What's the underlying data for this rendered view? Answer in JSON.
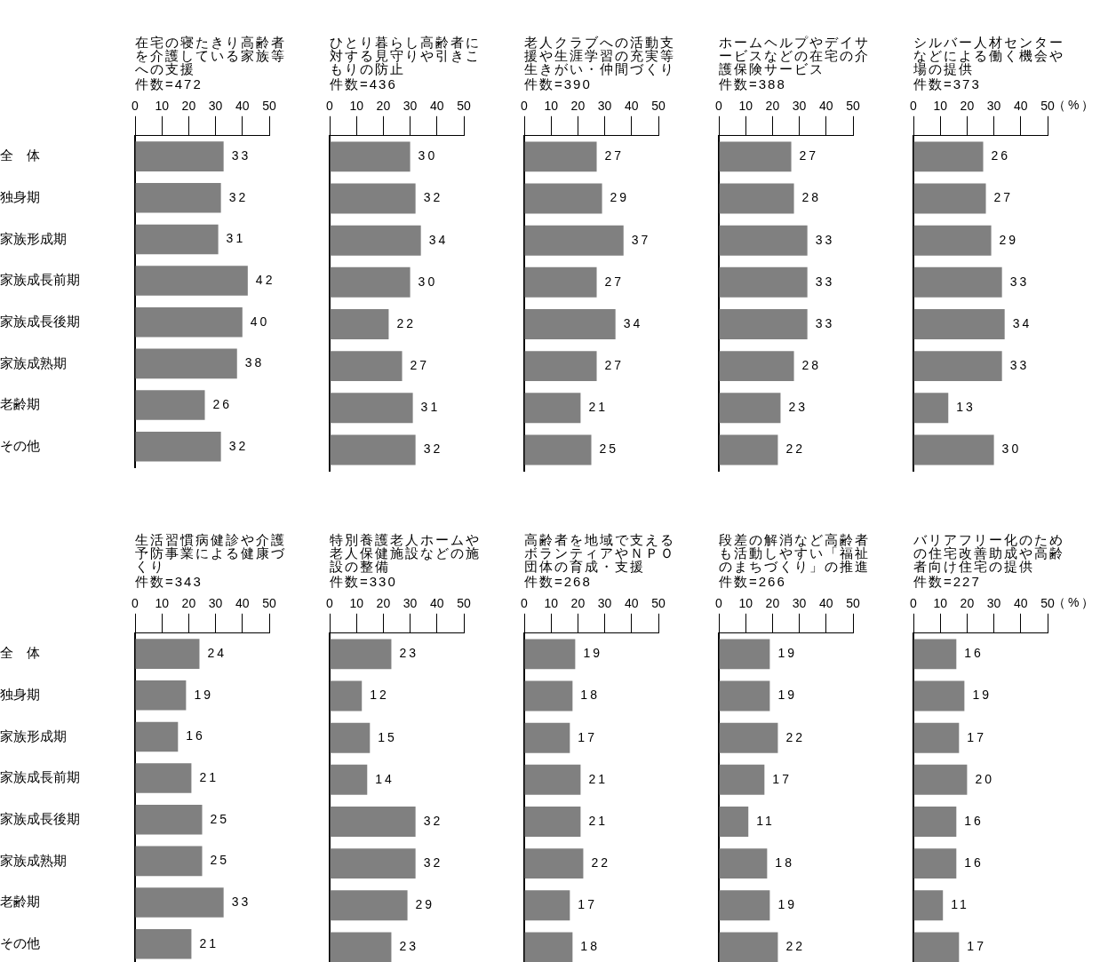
{
  "chart_data": [
    {
      "type": "bar",
      "orientation": "horizontal",
      "title": "在宅の寝たきり高齢者を介護している家族等への支援",
      "subtitle": "件数=472",
      "categories": [
        "全　体",
        "独身期",
        "家族形成期",
        "家族成長前期",
        "家族成長後期",
        "家族成熟期",
        "老齢期",
        "その他"
      ],
      "values": [
        33,
        32,
        31,
        42,
        40,
        38,
        26,
        32
      ],
      "color": "#808080",
      "xlim": [
        0,
        50
      ],
      "xticks": [
        0,
        10,
        20,
        30,
        40,
        50
      ],
      "data_labels": true
    },
    {
      "type": "bar",
      "orientation": "horizontal",
      "title": "ひとり暮らし高齢者に対する見守りや引きこもりの防止",
      "subtitle": "件数=436",
      "categories": [
        null,
        null,
        null,
        null,
        null,
        null,
        null,
        null
      ],
      "values": [
        30,
        32,
        34,
        30,
        22,
        27,
        31,
        32
      ],
      "color": "#808080",
      "xlim": [
        0,
        50
      ],
      "xticks": [
        0,
        10,
        20,
        30,
        40,
        50
      ],
      "data_labels": true,
      "tick_labels": "x"
    },
    {
      "type": "bar",
      "orientation": "horizontal",
      "title": "老人クラブへの活動支援や生涯学習の充実等生きがい・仲間づくり",
      "subtitle": "件数=390",
      "categories": [
        null,
        null,
        null,
        null,
        null,
        null,
        null,
        null
      ],
      "values": [
        27,
        29,
        37,
        27,
        34,
        27,
        21,
        25
      ],
      "color": "#808080",
      "xlim": [
        0,
        50
      ],
      "xticks": [
        0,
        10,
        20,
        30,
        40,
        50
      ],
      "data_labels": true,
      "tick_labels": "x"
    },
    {
      "type": "bar",
      "orientation": "horizontal",
      "title": "ホームヘルプやデイサービスなどの在宅の介護保険サービス",
      "subtitle": "件数=388",
      "categories": [
        null,
        null,
        null,
        null,
        null,
        null,
        null,
        null
      ],
      "values": [
        27,
        28,
        33,
        33,
        33,
        28,
        23,
        22
      ],
      "color": "#808080",
      "xlim": [
        0,
        50
      ],
      "xticks": [
        0,
        10,
        20,
        30,
        40,
        50
      ],
      "data_labels": true,
      "tick_labels": "x"
    },
    {
      "type": "bar",
      "orientation": "horizontal",
      "title": "シルバー人材センターなどによる働く機会や場の提供",
      "subtitle": "件数=373",
      "xlabel": "（%）",
      "categories": [
        null,
        null,
        null,
        null,
        null,
        null,
        null,
        null
      ],
      "values": [
        26,
        27,
        29,
        33,
        34,
        33,
        13,
        30
      ],
      "color": "#808080",
      "xlim": [
        0,
        50
      ],
      "xticks": [
        0,
        10,
        20,
        30,
        40,
        50
      ],
      "data_labels": true,
      "tick_labels": "x"
    },
    {
      "type": "bar",
      "orientation": "horizontal",
      "title": "生活習慣病健診や介護予防事業による健康づくり",
      "subtitle": "件数=343",
      "categories": [
        "全　体",
        "独身期",
        "家族形成期",
        "家族成長前期",
        "家族成長後期",
        "家族成熟期",
        "老齢期",
        "その他"
      ],
      "values": [
        24,
        19,
        16,
        21,
        25,
        25,
        33,
        21
      ],
      "color": "#808080",
      "xlim": [
        0,
        50
      ],
      "xticks": [
        0,
        10,
        20,
        30,
        40,
        50
      ],
      "data_labels": true
    },
    {
      "type": "bar",
      "orientation": "horizontal",
      "title": "特別養護老人ホームや老人保健施設などの施設の整備",
      "subtitle": "件数=330",
      "categories": [
        null,
        null,
        null,
        null,
        null,
        null,
        null,
        null
      ],
      "values": [
        23,
        12,
        15,
        14,
        32,
        32,
        29,
        23
      ],
      "color": "#808080",
      "xlim": [
        0,
        50
      ],
      "xticks": [
        0,
        10,
        20,
        30,
        40,
        50
      ],
      "data_labels": true,
      "tick_labels": "x"
    },
    {
      "type": "bar",
      "orientation": "horizontal",
      "title": "高齢者を地域で支えるボランティアやＮＰＯ団体の育成・支援",
      "subtitle": "件数=268",
      "categories": [
        null,
        null,
        null,
        null,
        null,
        null,
        null,
        null
      ],
      "values": [
        19,
        18,
        17,
        21,
        21,
        22,
        17,
        18
      ],
      "color": "#808080",
      "xlim": [
        0,
        50
      ],
      "xticks": [
        0,
        10,
        20,
        30,
        40,
        50
      ],
      "data_labels": true,
      "tick_labels": "x"
    },
    {
      "type": "bar",
      "orientation": "horizontal",
      "title": "段差の解消など高齢者も活動しやすい「福祉のまちづくり」の推進",
      "subtitle": "件数=266",
      "categories": [
        null,
        null,
        null,
        null,
        null,
        null,
        null,
        null
      ],
      "values": [
        19,
        19,
        22,
        17,
        11,
        18,
        19,
        22
      ],
      "color": "#808080",
      "xlim": [
        0,
        50
      ],
      "xticks": [
        0,
        10,
        20,
        30,
        40,
        50
      ],
      "data_labels": true,
      "tick_labels": "x"
    },
    {
      "type": "bar",
      "orientation": "horizontal",
      "title": "バリアフリー化のための住宅改善助成や高齢者向け住宅の提供",
      "subtitle": "件数=227",
      "xlabel": "（%）",
      "categories": [
        null,
        null,
        null,
        null,
        null,
        null,
        null,
        null
      ],
      "values": [
        16,
        19,
        17,
        20,
        16,
        16,
        11,
        17
      ],
      "color": "#808080",
      "xlim": [
        0,
        50
      ],
      "xticks": [
        0,
        10,
        20,
        30,
        40,
        50
      ],
      "data_labels": true,
      "tick_labels": "x"
    }
  ]
}
